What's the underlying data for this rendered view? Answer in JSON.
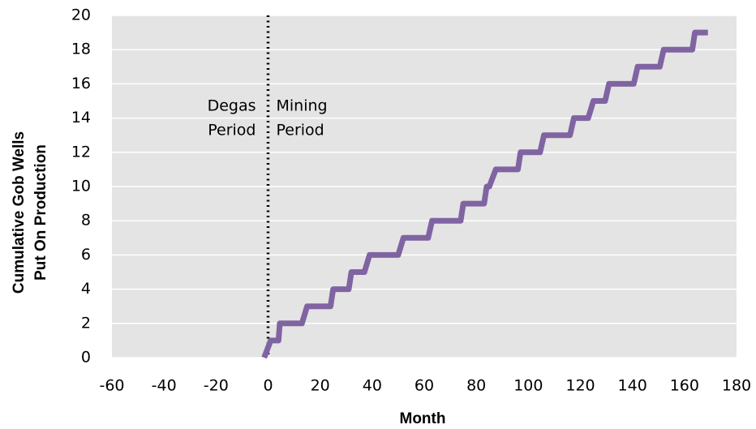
{
  "chart_data": {
    "type": "line",
    "xlabel": "Month",
    "ylabel": [
      "Cumulative Gob Wells",
      "Put On Production"
    ],
    "series": [
      {
        "color": "#8064a2",
        "x": [
          -1.5,
          1,
          4,
          4.5,
          13,
          15,
          24,
          25,
          31,
          32,
          37,
          39,
          50,
          52,
          61.5,
          63,
          74,
          75,
          83,
          84,
          85,
          87.5,
          96,
          97,
          104.5,
          106,
          116,
          117.5,
          123,
          125,
          129.5,
          131,
          140.5,
          142,
          150.5,
          152,
          163,
          164,
          169
        ],
        "values": [
          0,
          1,
          1,
          2,
          2,
          3,
          3,
          4,
          4,
          5,
          5,
          6,
          6,
          7,
          7,
          8,
          8,
          9,
          9,
          10,
          10,
          11,
          11,
          12,
          12,
          13,
          13,
          14,
          14,
          15,
          15,
          16,
          16,
          17,
          17,
          18,
          18,
          19,
          19
        ]
      }
    ],
    "xlim": [
      -60,
      180
    ],
    "xticks": [
      -60,
      -40,
      -20,
      0,
      20,
      40,
      60,
      80,
      100,
      120,
      140,
      160,
      180
    ],
    "ylim": [
      0,
      20
    ],
    "yticks": [
      0,
      2,
      4,
      6,
      8,
      10,
      12,
      14,
      16,
      18,
      20
    ],
    "grid": true,
    "divider_x": 0,
    "annotations": [
      {
        "lines": [
          "Degas",
          "Period"
        ],
        "side": "left"
      },
      {
        "lines": [
          "Mining",
          "Period"
        ],
        "side": "right"
      }
    ]
  }
}
